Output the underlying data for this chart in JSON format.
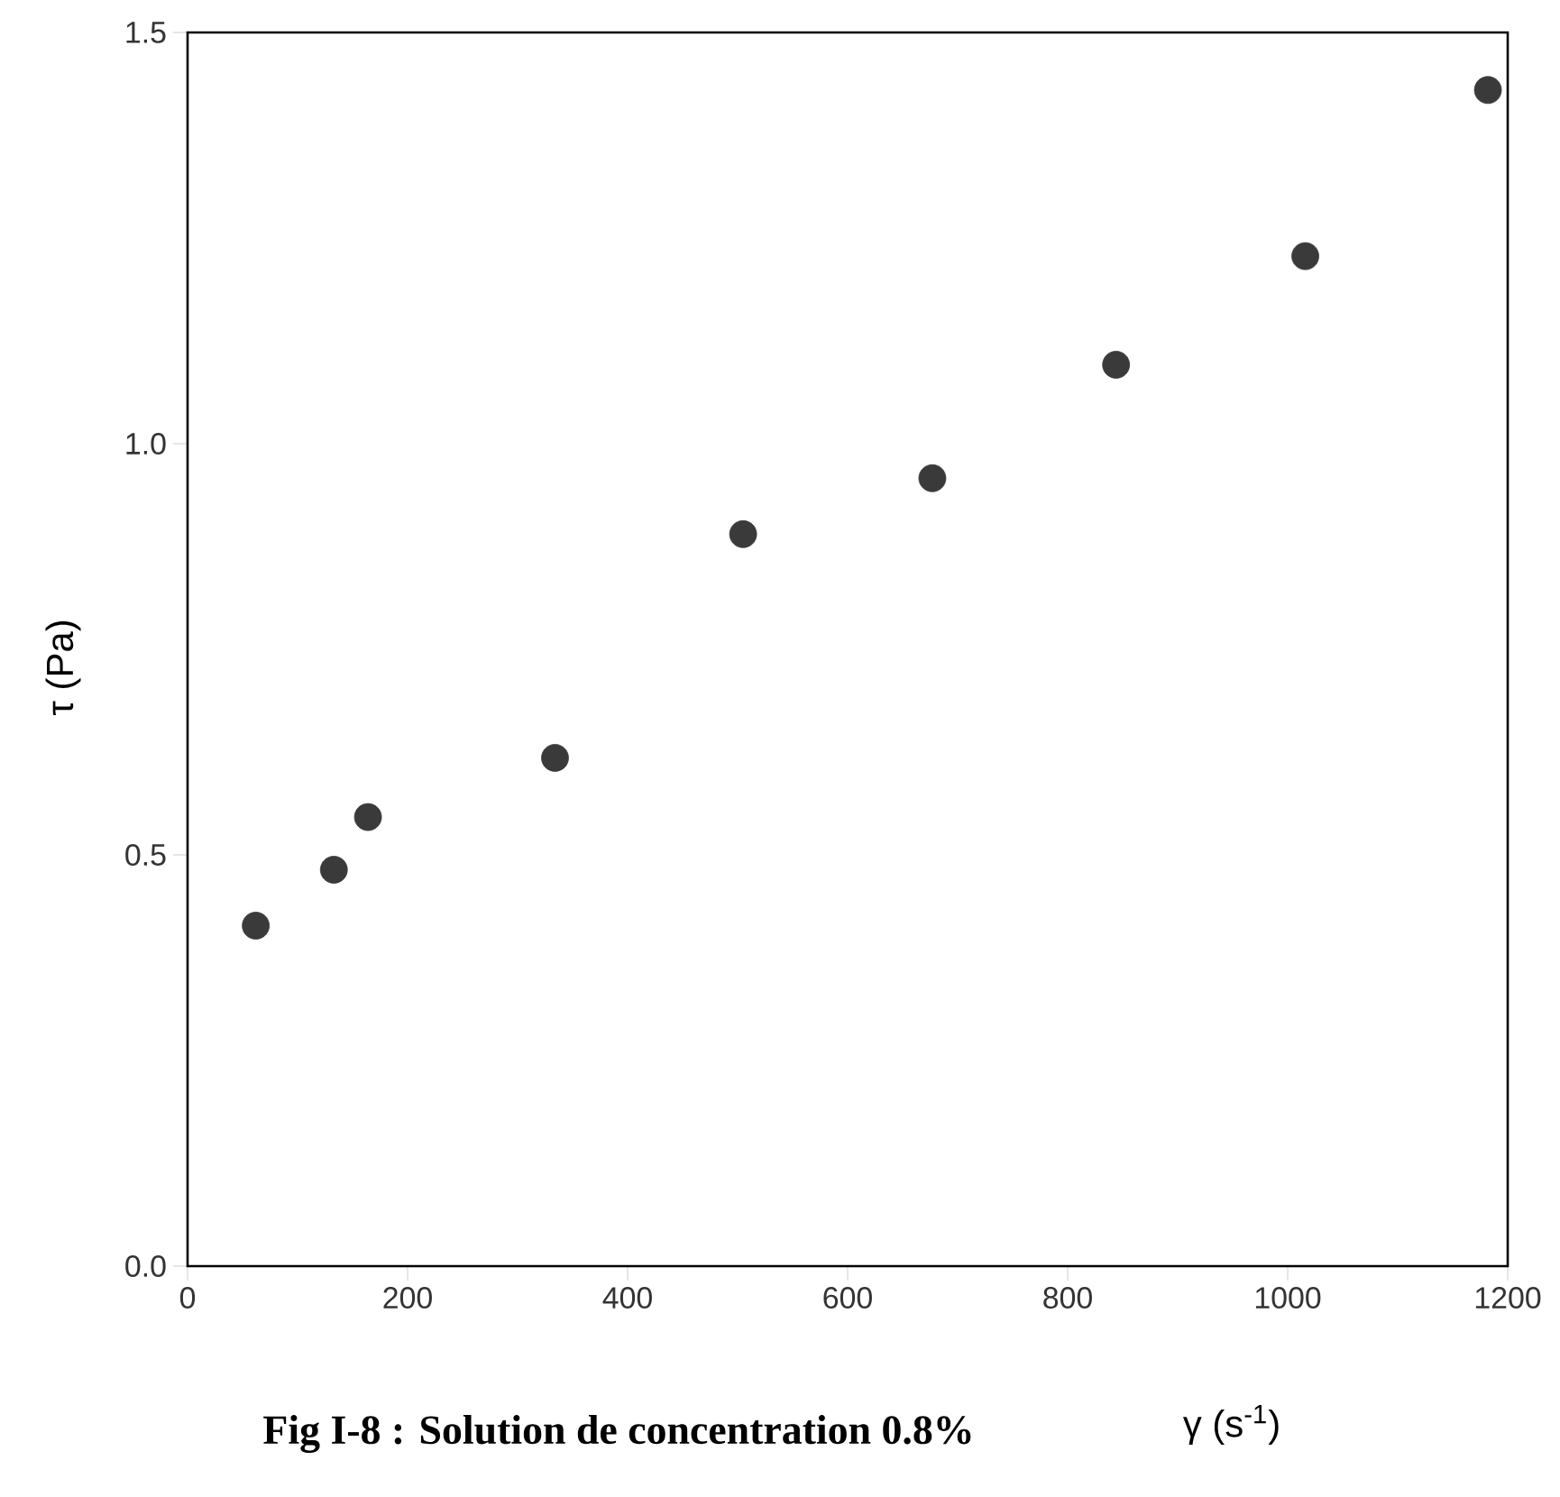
{
  "chart_data": {
    "type": "scatter",
    "title": "Fig I-8 : Solution de concentration 0.8%",
    "xlabel": "γ (s$^{-1}$)",
    "ylabel": "τ (Pa)",
    "x": [
      62,
      133,
      164,
      334,
      505,
      677,
      844,
      1016,
      1182
    ],
    "series": [
      {
        "color": "#3a3a3a",
        "values": [
          0.414,
          0.482,
          0.546,
          0.618,
          0.89,
          0.958,
          1.096,
          1.228,
          1.43
        ]
      }
    ],
    "xlim": [
      0,
      1200
    ],
    "ylim": [
      0,
      1.5
    ],
    "xticks": [
      0,
      200,
      400,
      600,
      800,
      1000,
      1200
    ],
    "yticks": [
      {
        "value": 0,
        "label": "0.0"
      },
      {
        "value": 0.5,
        "label": "0.5"
      },
      {
        "value": 1.0,
        "label": "1.0"
      },
      {
        "value": 1.5,
        "label": "1.5"
      }
    ],
    "grid": false
  }
}
